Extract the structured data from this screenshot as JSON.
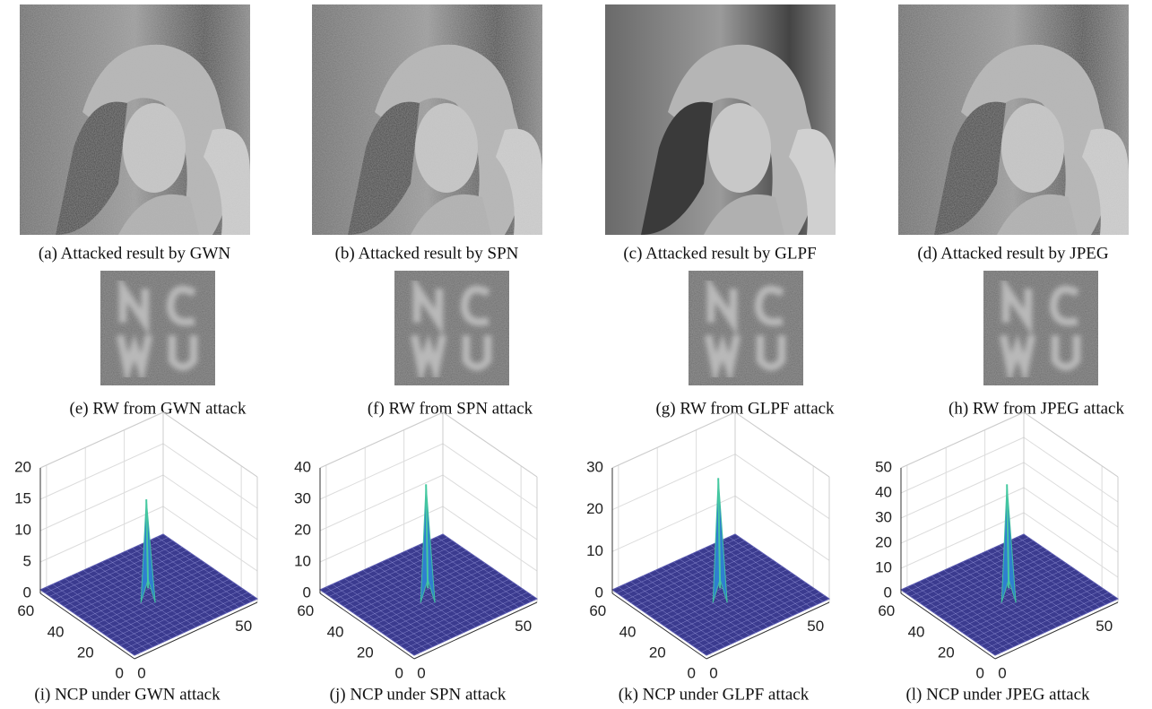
{
  "photos": [
    {
      "caption": "(a) Attacked result by GWN"
    },
    {
      "caption": "(b) Attacked result by SPN"
    },
    {
      "caption": "(c) Attacked result by GLPF"
    },
    {
      "caption": "(d) Attacked result by JPEG"
    }
  ],
  "watermarks": [
    {
      "caption": "(e) RW from GWN attack"
    },
    {
      "caption": "(f) RW from SPN attack"
    },
    {
      "caption": "(g) RW from GLPF attack"
    },
    {
      "caption": "(h) RW from JPEG attack"
    }
  ],
  "plots": [
    {
      "caption": "(i) NCP under GWN attack",
      "zticks": [
        "0",
        "5",
        "10",
        "15",
        "20"
      ],
      "yticks": [
        "0",
        "20",
        "40",
        "60"
      ],
      "xticks": [
        "0",
        "50"
      ]
    },
    {
      "caption": "(j) NCP under SPN attack",
      "zticks": [
        "0",
        "10",
        "20",
        "30",
        "40"
      ],
      "yticks": [
        "0",
        "20",
        "40",
        "60"
      ],
      "xticks": [
        "0",
        "50"
      ]
    },
    {
      "caption": "(k) NCP under GLPF attack",
      "zticks": [
        "0",
        "10",
        "20",
        "30"
      ],
      "yticks": [
        "0",
        "20",
        "40",
        "60"
      ],
      "xticks": [
        "0",
        "50"
      ]
    },
    {
      "caption": "(l) NCP under JPEG attack",
      "zticks": [
        "0",
        "10",
        "20",
        "30",
        "40",
        "50"
      ],
      "yticks": [
        "0",
        "20",
        "40",
        "60"
      ],
      "xticks": [
        "0",
        "50"
      ]
    }
  ]
}
